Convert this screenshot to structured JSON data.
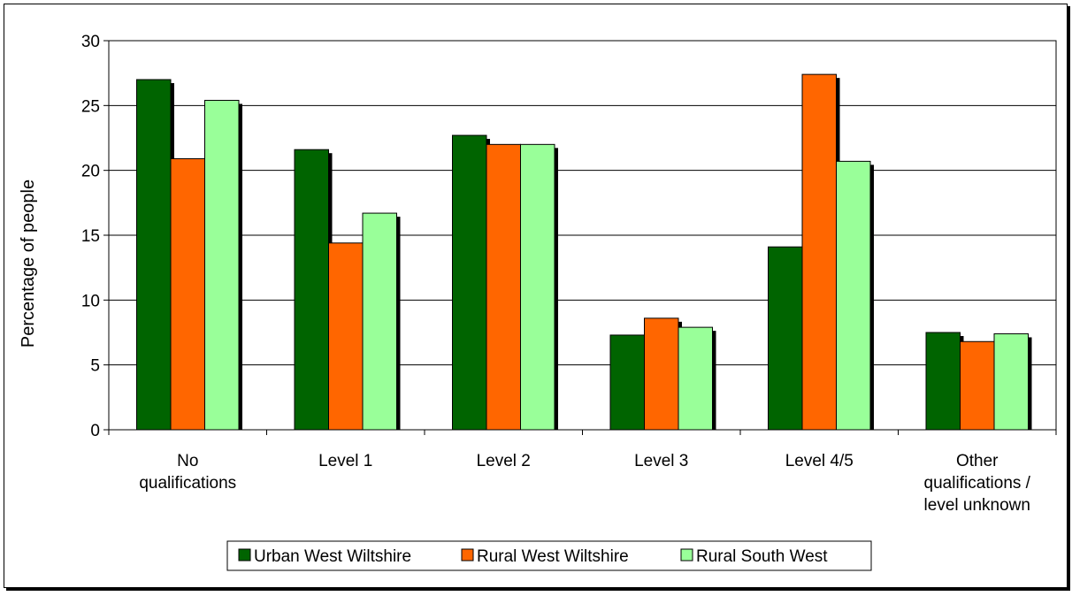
{
  "chart_data": {
    "type": "bar",
    "title": "",
    "xlabel": "",
    "ylabel": "Percentage of people",
    "ylim": [
      0,
      30
    ],
    "yticks": [
      0,
      5,
      10,
      15,
      20,
      25,
      30
    ],
    "grid": true,
    "legend_position": "bottom",
    "categories": [
      [
        "No",
        "qualifications"
      ],
      [
        "Level 1"
      ],
      [
        "Level 2"
      ],
      [
        "Level 3"
      ],
      [
        "Level 4/5"
      ],
      [
        "Other",
        "qualifications /",
        "level unknown"
      ]
    ],
    "series": [
      {
        "name": "Urban West Wiltshire",
        "color": "#006400",
        "values": [
          27.0,
          21.6,
          22.7,
          7.3,
          14.1,
          7.5
        ]
      },
      {
        "name": "Rural West Wiltshire",
        "color": "#FF6600",
        "values": [
          20.9,
          14.4,
          22.0,
          8.6,
          27.4,
          6.8
        ]
      },
      {
        "name": "Rural South West",
        "color": "#99FF99",
        "values": [
          25.4,
          16.7,
          22.0,
          7.9,
          20.7,
          7.4
        ]
      }
    ]
  }
}
